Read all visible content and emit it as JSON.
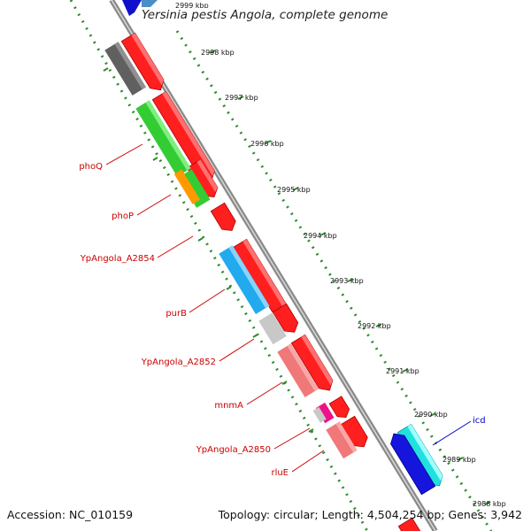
{
  "title": "Yersinia pestis Angola, complete genome",
  "footer": {
    "accession": "Accession: NC_010159",
    "summary": "Topology: circular; Length: 4,504,254 bp; Genes: 3,942"
  },
  "colors": {
    "backbone": "#8a8a8a",
    "tick_dots": "#2e8b2e",
    "label_red": "#cc0000",
    "label_blue": "#0000cc"
  },
  "ticks": [
    "2999 kbp",
    "2998 kbp",
    "2997 kbp",
    "2996 kbp",
    "2995 kbp",
    "2994 kbp",
    "2993 kbp",
    "2992 kbp",
    "2991 kbp",
    "2990 kbp",
    "2989 kbp",
    "2988 kbp"
  ],
  "gene_labels": [
    "phoQ",
    "phoP",
    "YpAngola_A2854",
    "purB",
    "YpAngola_A2852",
    "mnmA",
    "YpAngola_A2850",
    "rluE",
    "icd"
  ]
}
